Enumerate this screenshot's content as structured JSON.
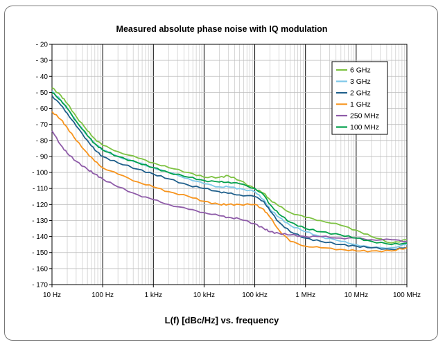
{
  "chart_data": {
    "type": "line",
    "title": "Measured absolute phase noise with IQ modulation",
    "xlabel": "L(f) [dBc/Hz] vs. frequency",
    "ylabel": "",
    "x_scale": "log",
    "xlim": [
      10,
      100000000
    ],
    "ylim": [
      -170,
      -20
    ],
    "x_tick_values": [
      10,
      100,
      1000,
      10000,
      100000,
      1000000,
      10000000,
      100000000
    ],
    "x_tick_labels": [
      "10 Hz",
      "100 Hz",
      "1 kHz",
      "10 kHz",
      "100 kHz",
      "1 MHz",
      "10 MHz",
      "100 MHz"
    ],
    "y_tick_values": [
      -20,
      -30,
      -40,
      -50,
      -60,
      -70,
      -80,
      -90,
      -100,
      -110,
      -120,
      -130,
      -140,
      -150,
      -160,
      -170
    ],
    "y_tick_labels": [
      "- 20",
      "- 30",
      "- 40",
      "- 50",
      "- 60",
      "- 70",
      "- 80",
      "- 90",
      "- 100",
      "- 110",
      "- 120",
      "- 130",
      "- 140",
      "- 150",
      "- 160",
      "- 170"
    ],
    "grid": true,
    "legend_position": "top-right",
    "series": [
      {
        "name": "6 GHz",
        "color": "#7dc242",
        "x": [
          10,
          15,
          20,
          30,
          50,
          70,
          100,
          200,
          500,
          1000,
          2000,
          5000,
          10000,
          20000,
          30000,
          50000,
          100000,
          150000,
          200000,
          300000,
          500000,
          1000000,
          2000000,
          5000000,
          10000000,
          20000000,
          50000000,
          100000000
        ],
        "y": [
          -47,
          -52,
          -57,
          -65,
          -74,
          -79,
          -83,
          -87,
          -91,
          -94,
          -97,
          -100,
          -103,
          -103,
          -102,
          -105,
          -110,
          -113,
          -117,
          -121,
          -125,
          -128,
          -130,
          -133,
          -136,
          -140,
          -144,
          -142
        ]
      },
      {
        "name": "3 GHz",
        "color": "#7ec8e8",
        "x": [
          10,
          15,
          20,
          30,
          50,
          70,
          100,
          200,
          500,
          1000,
          2000,
          5000,
          10000,
          20000,
          30000,
          50000,
          100000,
          150000,
          200000,
          300000,
          500000,
          1000000,
          2000000,
          5000000,
          10000000,
          20000000,
          50000000,
          100000000
        ],
        "y": [
          -49,
          -55,
          -60,
          -68,
          -77,
          -82,
          -86,
          -90,
          -94,
          -97,
          -100,
          -104,
          -107,
          -109,
          -109,
          -110,
          -112,
          -117,
          -123,
          -128,
          -133,
          -137,
          -140,
          -143,
          -145,
          -147,
          -147,
          -145
        ]
      },
      {
        "name": "2 GHz",
        "color": "#1f5f8b",
        "x": [
          10,
          15,
          20,
          30,
          50,
          70,
          100,
          200,
          500,
          1000,
          2000,
          5000,
          10000,
          20000,
          30000,
          50000,
          100000,
          150000,
          200000,
          300000,
          500000,
          1000000,
          2000000,
          5000000,
          10000000,
          20000000,
          50000000,
          100000000
        ],
        "y": [
          -52,
          -58,
          -63,
          -71,
          -80,
          -86,
          -90,
          -94,
          -98,
          -101,
          -104,
          -108,
          -110,
          -112,
          -113,
          -114,
          -115,
          -118,
          -124,
          -131,
          -137,
          -141,
          -143,
          -145,
          -146,
          -147,
          -148,
          -147
        ]
      },
      {
        "name": "1 GHz",
        "color": "#f7941d",
        "x": [
          10,
          15,
          20,
          30,
          50,
          70,
          100,
          200,
          500,
          1000,
          2000,
          5000,
          10000,
          20000,
          30000,
          50000,
          100000,
          150000,
          200000,
          300000,
          500000,
          1000000,
          2000000,
          5000000,
          10000000,
          20000000,
          50000000,
          100000000
        ],
        "y": [
          -62,
          -67,
          -72,
          -80,
          -88,
          -93,
          -97,
          -101,
          -106,
          -109,
          -112,
          -115,
          -118,
          -120,
          -120,
          -120,
          -120,
          -123,
          -128,
          -136,
          -143,
          -146,
          -147,
          -148,
          -149,
          -149,
          -149,
          -147
        ]
      },
      {
        "name": "250 MHz",
        "color": "#8e5ba8",
        "x": [
          10,
          15,
          20,
          30,
          50,
          70,
          100,
          200,
          500,
          1000,
          2000,
          5000,
          10000,
          20000,
          30000,
          50000,
          100000,
          150000,
          200000,
          300000,
          500000,
          1000000,
          2000000,
          5000000,
          10000000,
          20000000,
          50000000,
          100000000
        ],
        "y": [
          -74,
          -83,
          -88,
          -93,
          -98,
          -101,
          -104,
          -109,
          -114,
          -117,
          -120,
          -123,
          -125,
          -127,
          -128,
          -129,
          -132,
          -135,
          -137,
          -138,
          -139,
          -140,
          -140,
          -141,
          -141,
          -142,
          -142,
          -143
        ]
      },
      {
        "name": "100 MHz",
        "color": "#00a04b",
        "x": [
          10,
          15,
          20,
          30,
          50,
          70,
          100,
          200,
          500,
          1000,
          2000,
          5000,
          10000,
          20000,
          30000,
          50000,
          100000,
          150000,
          200000,
          300000,
          500000,
          1000000,
          2000000,
          5000000,
          10000000,
          20000000,
          50000000,
          100000000
        ],
        "y": [
          -50,
          -55,
          -60,
          -68,
          -77,
          -82,
          -86,
          -90,
          -94,
          -97,
          -100,
          -103,
          -105,
          -106,
          -106,
          -107,
          -110,
          -114,
          -120,
          -126,
          -131,
          -135,
          -137,
          -139,
          -141,
          -143,
          -145,
          -144
        ]
      }
    ]
  }
}
